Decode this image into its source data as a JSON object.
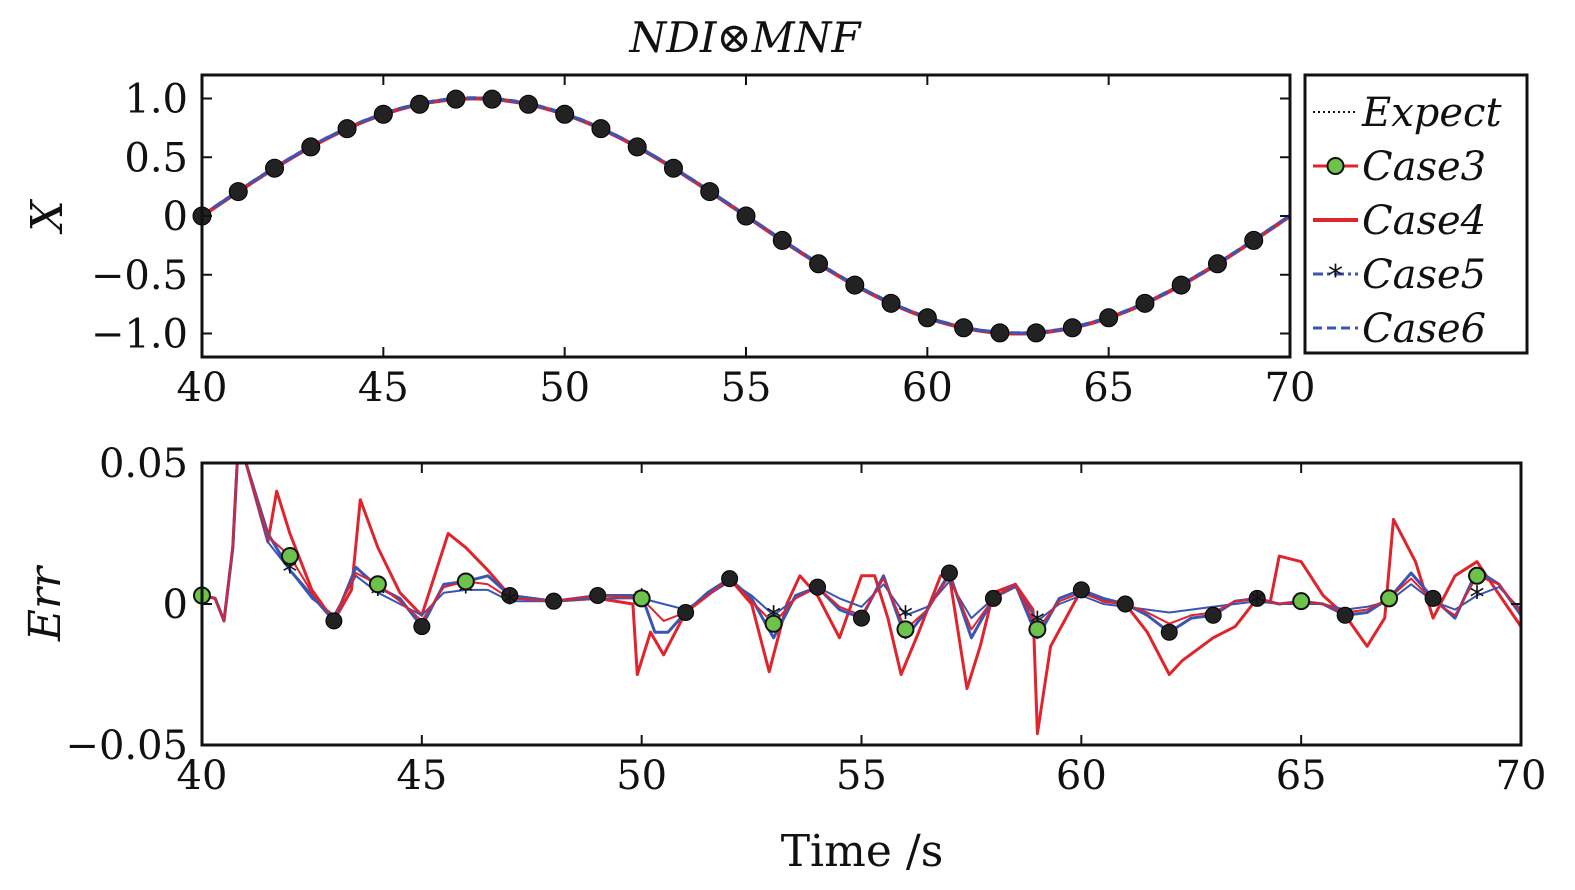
{
  "title": "NDI⊗MNF",
  "colors": {
    "expect": "#111111",
    "case3": "#e0242b",
    "case3_marker": "#6cc24a",
    "case4": "#e0242b",
    "case5": "#3a55b4",
    "case6": "#3a55b4",
    "marker_dark": "#222222",
    "frame": "#111111"
  },
  "legend": {
    "position": "right of top panel",
    "entries": [
      {
        "key": "expect",
        "label": "Expect",
        "style": "dotted"
      },
      {
        "key": "case3",
        "label": "Case3",
        "style": "solid-green-circle"
      },
      {
        "key": "case4",
        "label": "Case4",
        "style": "solid"
      },
      {
        "key": "case5",
        "label": "Case5",
        "style": "dashdot-asterisk"
      },
      {
        "key": "case6",
        "label": "Case6",
        "style": "dashed"
      }
    ]
  },
  "chart_data": [
    {
      "type": "line",
      "panel": "top",
      "ylabel": "X",
      "xlabel": "",
      "xlim": [
        40,
        70
      ],
      "ylim": [
        -1.2,
        1.2
      ],
      "xticks": [
        40,
        45,
        50,
        55,
        60,
        65,
        70
      ],
      "yticks": [
        1.0,
        0.5,
        0,
        -0.5,
        -1.0
      ],
      "ytick_labels": [
        "1.0",
        "0.5",
        "0",
        "−0.5",
        "−1.0"
      ],
      "grid": false,
      "model": {
        "form": "sin",
        "period_s": 30,
        "start_s": 40,
        "amplitude": 1.0
      },
      "marker_x": [
        40,
        41,
        42,
        43,
        44,
        45,
        46,
        47,
        48,
        49,
        50,
        51,
        52,
        53,
        54,
        55,
        56,
        57,
        58,
        59,
        60,
        61,
        62,
        63,
        64,
        65,
        66,
        67,
        68,
        69
      ],
      "series": [
        {
          "name": "Expect",
          "key": "expect"
        },
        {
          "name": "Case3",
          "key": "case3"
        },
        {
          "name": "Case4",
          "key": "case4"
        },
        {
          "name": "Case5",
          "key": "case5"
        },
        {
          "name": "Case6",
          "key": "case6"
        }
      ]
    },
    {
      "type": "line",
      "panel": "bottom",
      "ylabel": "Err",
      "xlabel": "Time /s",
      "xlim": [
        40,
        70
      ],
      "ylim": [
        -0.05,
        0.05
      ],
      "xticks": [
        40,
        45,
        50,
        55,
        60,
        65,
        70
      ],
      "yticks": [
        0.05,
        0,
        -0.05
      ],
      "ytick_labels": [
        "0.05",
        "0",
        "−0.05"
      ],
      "grid": false,
      "series": [
        {
          "name": "Case4",
          "key": "case4",
          "x": [
            40,
            40.3,
            40.5,
            40.7,
            40.8,
            41.0,
            41.5,
            41.7,
            42.0,
            42.5,
            43.0,
            43.4,
            43.6,
            44.0,
            44.5,
            45.0,
            45.6,
            46.0,
            46.5,
            47.0,
            48.0,
            49.0,
            49.8,
            49.9,
            50.2,
            50.5,
            51.0,
            51.5,
            52.0,
            52.5,
            52.9,
            53.3,
            53.6,
            54.0,
            54.5,
            55.0,
            55.3,
            55.6,
            55.9,
            56.3,
            56.8,
            57.0,
            57.4,
            57.7,
            58.0,
            58.5,
            58.9,
            59.0,
            59.3,
            60.0,
            60.5,
            61.0,
            61.5,
            62.0,
            62.3,
            63.0,
            63.5,
            63.9,
            64.3,
            64.5,
            65.0,
            65.5,
            66.0,
            66.5,
            66.9,
            67.1,
            67.6,
            68.0,
            68.5,
            69.0,
            69.3,
            70.0
          ],
          "y": [
            0.003,
            0.002,
            -0.006,
            0.02,
            0.05,
            0.05,
            0.022,
            0.04,
            0.025,
            0.005,
            -0.006,
            0.005,
            0.037,
            0.02,
            0.004,
            -0.004,
            0.025,
            0.02,
            0.012,
            0.003,
            0.001,
            0.002,
            0.0,
            -0.025,
            -0.01,
            -0.018,
            -0.003,
            0.003,
            0.009,
            0.0,
            -0.024,
            0.0,
            0.01,
            0.003,
            -0.012,
            0.01,
            0.01,
            -0.005,
            -0.025,
            -0.01,
            0.01,
            0.01,
            -0.03,
            -0.015,
            0.004,
            0.007,
            -0.002,
            -0.046,
            -0.015,
            0.005,
            0.001,
            0.0,
            -0.01,
            -0.025,
            -0.02,
            -0.012,
            -0.008,
            0.0,
            0.001,
            0.017,
            0.015,
            0.003,
            -0.004,
            -0.015,
            -0.005,
            0.03,
            0.015,
            -0.005,
            0.01,
            0.015,
            0.008,
            -0.008
          ]
        },
        {
          "name": "Case6",
          "key": "case6",
          "x": [
            40,
            40.3,
            40.5,
            40.7,
            40.8,
            41.0,
            41.5,
            42.0,
            42.5,
            43.0,
            43.5,
            44.0,
            44.5,
            45.0,
            45.5,
            46.0,
            46.5,
            47.0,
            48.0,
            49.0,
            50.0,
            50.3,
            50.6,
            51.0,
            51.5,
            52.0,
            52.5,
            53.0,
            53.5,
            54.0,
            54.5,
            55.0,
            55.5,
            56.0,
            56.5,
            57.0,
            57.5,
            58.0,
            58.5,
            59.0,
            59.5,
            60.0,
            60.5,
            61.0,
            61.5,
            62.0,
            62.5,
            63.0,
            63.5,
            64.0,
            64.5,
            65.0,
            65.5,
            66.0,
            66.5,
            67.0,
            67.5,
            68.0,
            68.5,
            69.0,
            69.5,
            70.0
          ],
          "y": [
            0.003,
            0.002,
            -0.006,
            0.02,
            0.05,
            0.05,
            0.025,
            0.012,
            0.003,
            -0.006,
            0.013,
            0.006,
            0.002,
            -0.008,
            0.007,
            0.008,
            0.01,
            0.003,
            0.001,
            0.003,
            0.003,
            -0.01,
            -0.01,
            -0.003,
            0.004,
            0.009,
            0.002,
            -0.012,
            0.003,
            0.006,
            -0.002,
            -0.005,
            0.01,
            -0.012,
            -0.002,
            0.011,
            -0.012,
            0.002,
            0.007,
            -0.012,
            0.002,
            0.005,
            0.002,
            0.0,
            -0.004,
            -0.01,
            -0.005,
            -0.004,
            0.001,
            0.002,
            0.0,
            0.001,
            0.0,
            -0.004,
            -0.003,
            0.002,
            0.011,
            0.002,
            -0.005,
            0.012,
            0.007,
            -0.004
          ]
        },
        {
          "name": "Case5",
          "key": "case5",
          "x": [
            40,
            40.3,
            40.5,
            40.7,
            40.8,
            41.0,
            41.5,
            42.0,
            42.5,
            43.0,
            43.5,
            44.0,
            44.5,
            45.0,
            45.5,
            46.0,
            46.5,
            47.0,
            48.0,
            49.0,
            50.0,
            50.5,
            51.0,
            51.5,
            52.0,
            52.5,
            53.0,
            53.5,
            54.0,
            54.5,
            55.0,
            55.5,
            56.0,
            56.5,
            57.0,
            57.5,
            58.0,
            58.5,
            59.0,
            59.5,
            60.0,
            60.5,
            61.0,
            61.5,
            62.0,
            62.5,
            63.0,
            63.5,
            64.0,
            64.5,
            65.0,
            65.5,
            66.0,
            66.5,
            67.0,
            67.5,
            68.0,
            68.5,
            69.0,
            69.5,
            70.0
          ],
          "y": [
            0.003,
            0.002,
            -0.006,
            0.02,
            0.05,
            0.05,
            0.022,
            0.012,
            0.002,
            -0.004,
            0.01,
            0.004,
            0.0,
            -0.004,
            0.004,
            0.005,
            0.005,
            0.001,
            0.001,
            0.002,
            0.002,
            0.0,
            -0.002,
            0.003,
            0.008,
            0.003,
            -0.004,
            0.002,
            0.006,
            0.002,
            -0.001,
            0.007,
            -0.004,
            -0.001,
            0.008,
            -0.005,
            0.002,
            0.006,
            -0.006,
            0.0,
            0.003,
            0.0,
            -0.001,
            -0.002,
            -0.003,
            -0.002,
            -0.001,
            0.0,
            0.001,
            0.0,
            0.0,
            0.0,
            -0.002,
            -0.001,
            0.001,
            0.007,
            0.001,
            -0.002,
            0.003,
            0.006,
            -0.002
          ]
        },
        {
          "name": "Case3",
          "key": "case3",
          "x": [
            40,
            40.3,
            40.5,
            40.7,
            40.8,
            41.0,
            41.5,
            42.0,
            42.5,
            43.0,
            43.5,
            44.0,
            44.5,
            45.0,
            45.5,
            46.0,
            46.5,
            47.0,
            48.0,
            49.0,
            50.0,
            50.5,
            51.0,
            51.5,
            52.0,
            52.5,
            53.0,
            53.5,
            54.0,
            54.5,
            55.0,
            55.5,
            56.0,
            56.5,
            57.0,
            57.5,
            58.0,
            58.5,
            59.0,
            59.5,
            60.0,
            60.5,
            61.0,
            61.5,
            62.0,
            62.5,
            63.0,
            63.5,
            64.0,
            64.5,
            65.0,
            65.5,
            66.0,
            66.5,
            67.0,
            67.5,
            68.0,
            68.5,
            69.0,
            69.5,
            70.0
          ],
          "y": [
            0.003,
            0.002,
            -0.006,
            0.02,
            0.05,
            0.05,
            0.024,
            0.017,
            0.004,
            -0.005,
            0.011,
            0.007,
            0.001,
            -0.006,
            0.006,
            0.008,
            0.007,
            0.002,
            0.001,
            0.003,
            0.002,
            -0.006,
            -0.003,
            0.003,
            0.009,
            0.001,
            -0.007,
            0.002,
            0.006,
            -0.001,
            -0.004,
            0.009,
            -0.009,
            -0.002,
            0.01,
            -0.009,
            0.002,
            0.007,
            -0.009,
            0.001,
            0.004,
            0.001,
            0.0,
            -0.003,
            -0.007,
            -0.004,
            -0.003,
            0.001,
            0.002,
            0.0,
            0.001,
            0.0,
            -0.003,
            -0.002,
            0.002,
            0.009,
            0.001,
            -0.004,
            0.01,
            0.007,
            -0.003
          ]
        }
      ],
      "markers": {
        "case3_x": [
          40,
          42,
          44,
          46,
          50,
          53,
          56,
          59,
          65,
          67,
          69
        ],
        "case5_x": [
          42,
          44,
          46,
          47,
          50,
          53,
          56,
          59,
          64,
          67,
          69
        ],
        "dark_x": [
          40,
          43,
          45,
          47,
          48,
          49,
          51,
          52,
          54,
          55,
          57,
          58,
          60,
          61,
          62,
          63,
          64,
          66,
          68
        ]
      }
    }
  ]
}
